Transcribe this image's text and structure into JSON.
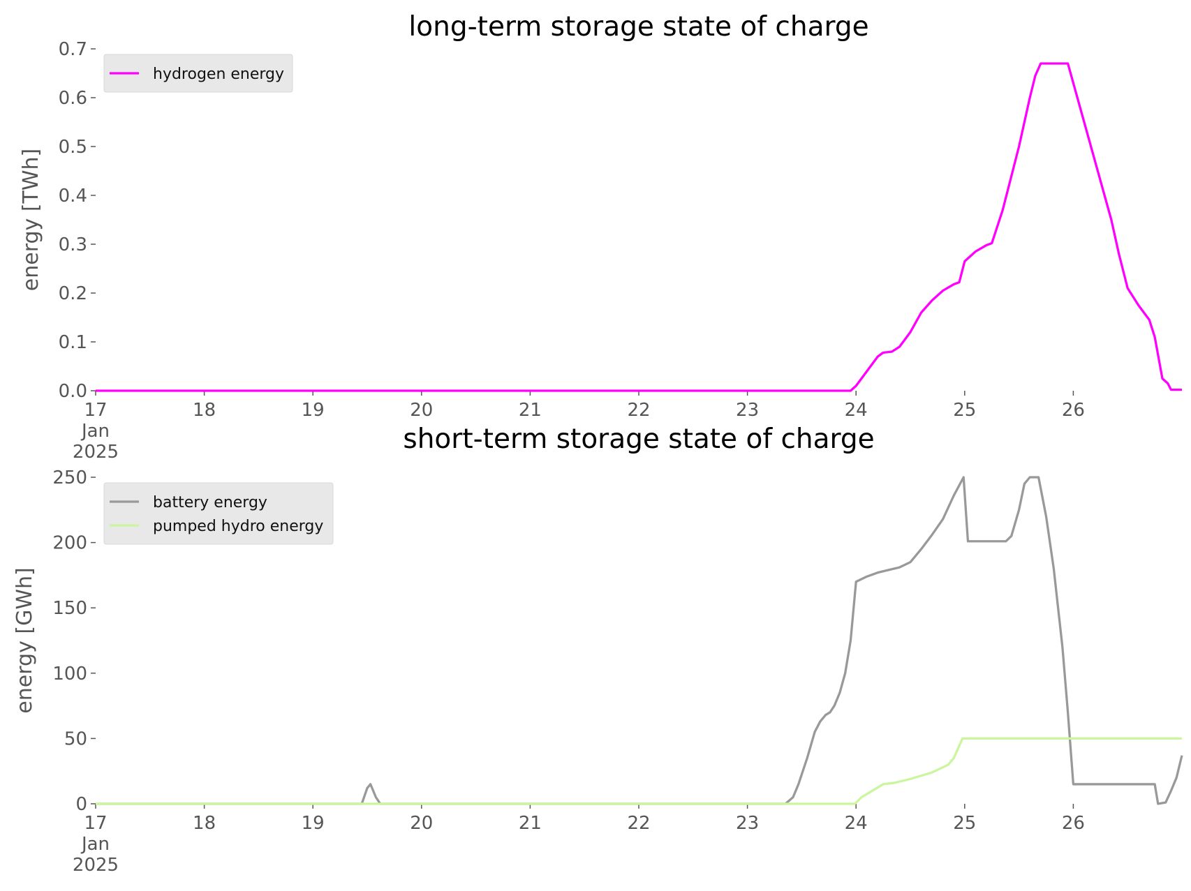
{
  "chart_data": [
    {
      "type": "line",
      "title": "long-term storage state of charge",
      "ylabel": "energy [TWh]",
      "legend": "upper left",
      "xlim": [
        17,
        27
      ],
      "ylim": [
        0,
        0.7
      ],
      "xticks": [
        {
          "value": 17,
          "label": "17\nJan\n2025"
        },
        18,
        19,
        20,
        21,
        22,
        23,
        24,
        25,
        26
      ],
      "yticks": [
        {
          "value": 0,
          "label": "0.0"
        },
        0.1,
        0.2,
        0.3,
        0.4,
        0.5,
        0.6,
        0.7
      ],
      "series": [
        {
          "name": "hydrogen energy",
          "color": "#ff00ff",
          "x": [
            17,
            23.95,
            24.0,
            24.1,
            24.2,
            24.25,
            24.33,
            24.4,
            24.5,
            24.6,
            24.7,
            24.8,
            24.9,
            24.95,
            25.0,
            25.1,
            25.2,
            25.25,
            25.35,
            25.5,
            25.6,
            25.65,
            25.7,
            25.95,
            26.1,
            26.25,
            26.35,
            26.42,
            26.5,
            26.6,
            26.7,
            26.75,
            26.82,
            26.87,
            26.9,
            27.0
          ],
          "values": [
            0,
            0,
            0.01,
            0.04,
            0.07,
            0.078,
            0.08,
            0.09,
            0.12,
            0.16,
            0.185,
            0.205,
            0.218,
            0.222,
            0.265,
            0.285,
            0.298,
            0.302,
            0.37,
            0.5,
            0.6,
            0.645,
            0.67,
            0.67,
            0.55,
            0.43,
            0.35,
            0.28,
            0.21,
            0.175,
            0.145,
            0.11,
            0.025,
            0.015,
            0.002,
            0.002
          ]
        }
      ]
    },
    {
      "type": "line",
      "title": "short-term storage state of charge",
      "ylabel": "energy [GWh]",
      "legend": "upper left",
      "xlim": [
        17,
        27
      ],
      "ylim": [
        0,
        250
      ],
      "xticks": [
        {
          "value": 17,
          "label": "17\nJan\n2025"
        },
        18,
        19,
        20,
        21,
        22,
        23,
        24,
        25,
        26
      ],
      "yticks": [
        0,
        50,
        100,
        150,
        200,
        250
      ],
      "series": [
        {
          "name": "battery energy",
          "color": "#999999",
          "x": [
            17,
            19.45,
            19.5,
            19.53,
            19.58,
            19.62,
            23.35,
            23.42,
            23.47,
            23.55,
            23.62,
            23.67,
            23.72,
            23.76,
            23.8,
            23.85,
            23.9,
            23.95,
            24.0,
            24.1,
            24.2,
            24.3,
            24.35,
            24.4,
            24.5,
            24.6,
            24.7,
            24.8,
            24.9,
            24.99,
            25.03,
            25.38,
            25.43,
            25.5,
            25.55,
            25.6,
            25.68,
            25.75,
            25.82,
            25.9,
            25.95,
            26.0,
            26.75,
            26.78,
            26.85,
            26.9,
            26.95,
            27.0
          ],
          "values": [
            0,
            0,
            12,
            15,
            5,
            0,
            0,
            5,
            15,
            35,
            55,
            63,
            68,
            70,
            75,
            85,
            100,
            125,
            170,
            174,
            177,
            179,
            180,
            181,
            185,
            195,
            206,
            218,
            236,
            250,
            201,
            201,
            205,
            225,
            245,
            250,
            250,
            220,
            180,
            120,
            70,
            15,
            15,
            0,
            1,
            10,
            20,
            37
          ]
        },
        {
          "name": "pumped hydro energy",
          "color": "#ccf5a0",
          "x": [
            17,
            23.99,
            24.05,
            24.15,
            24.25,
            24.35,
            24.5,
            24.7,
            24.85,
            24.9,
            24.98,
            27
          ],
          "values": [
            0,
            0,
            5,
            10,
            15,
            16,
            19,
            24,
            30,
            35,
            50,
            50
          ]
        }
      ]
    }
  ]
}
